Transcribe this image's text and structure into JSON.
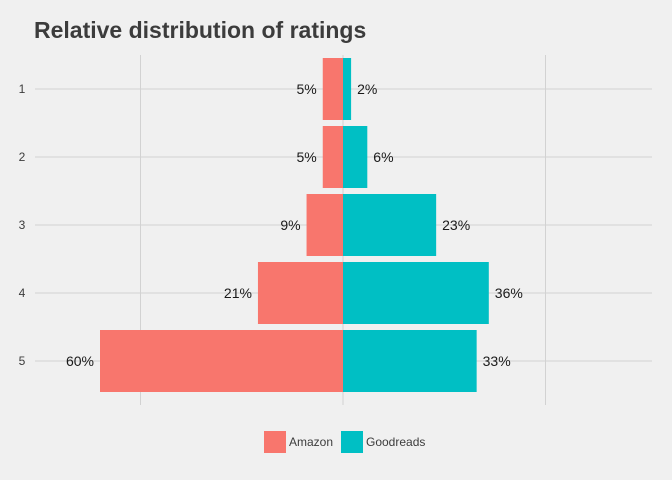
{
  "chart_data": {
    "type": "bar",
    "orientation": "horizontal-diverging",
    "title": "Relative distribution of ratings",
    "xlabel": "",
    "ylabel": "",
    "categories": [
      "1",
      "2",
      "3",
      "4",
      "5"
    ],
    "series": [
      {
        "name": "Amazon",
        "color": "#f8766d",
        "values": [
          5,
          5,
          9,
          21,
          60
        ],
        "labels": [
          "5%",
          "5%",
          "9%",
          "21%",
          "60%"
        ],
        "direction": "left"
      },
      {
        "name": "Goodreads",
        "color": "#00bfc4",
        "values": [
          2,
          6,
          23,
          36,
          33
        ],
        "labels": [
          "2%",
          "6%",
          "23%",
          "36%",
          "33%"
        ],
        "direction": "right"
      }
    ],
    "xlim": [
      -75,
      75
    ],
    "grid": true,
    "legend_position": "bottom"
  }
}
